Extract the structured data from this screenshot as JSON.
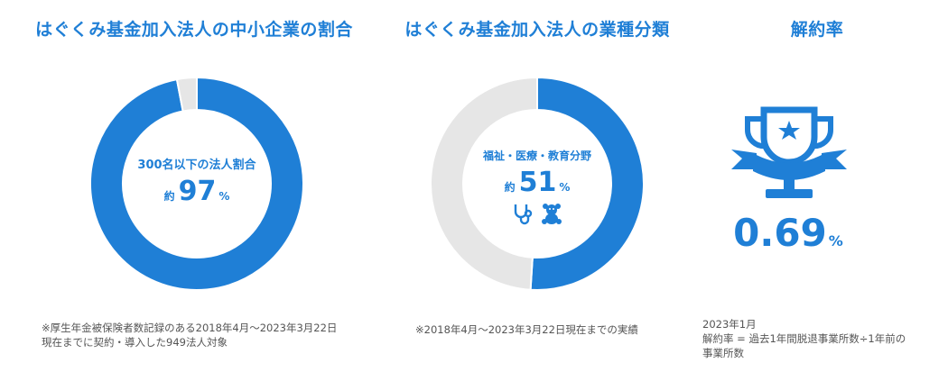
{
  "panels": {
    "sme": {
      "title": "はぐくみ基金加入法人の中小企業の割合",
      "center_label": "300名以下の法人割合",
      "prefix": "約",
      "value": "97",
      "unit": "%",
      "note_line1": "※厚生年金被保険者数記録のある2018年4月～2023年3月22日",
      "note_line2": "現在までに契約・導入した949法人対象"
    },
    "industry": {
      "title": "はぐくみ基金加入法人の業種分類",
      "center_label": "福祉・医療・教育分野",
      "prefix": "約",
      "value": "51",
      "unit": "%",
      "icons": [
        "stethoscope-icon",
        "teddy-bear-icon"
      ],
      "note": "※2018年4月～2023年3月22日現在までの実績"
    },
    "cancel": {
      "title": "解約率",
      "icon": "trophy-icon",
      "value": "0.69",
      "unit": "%",
      "note_line1": "2023年1月",
      "note_line2": "解約率 = 過去1年間脱退事業所数÷1年前の",
      "note_line3": "事業所数"
    }
  },
  "colors": {
    "primary": "#1f7fd6",
    "track": "#e6e6e6"
  },
  "chart_data": [
    {
      "type": "pie",
      "title": "はぐくみ基金加入法人の中小企業の割合",
      "categories": [
        "300名以下の法人割合",
        ""
      ],
      "values": [
        97,
        3
      ]
    },
    {
      "type": "pie",
      "title": "はぐくみ基金加入法人の業種分類",
      "categories": [
        "福祉・医療・教育分野",
        ""
      ],
      "values": [
        51,
        49
      ]
    }
  ]
}
